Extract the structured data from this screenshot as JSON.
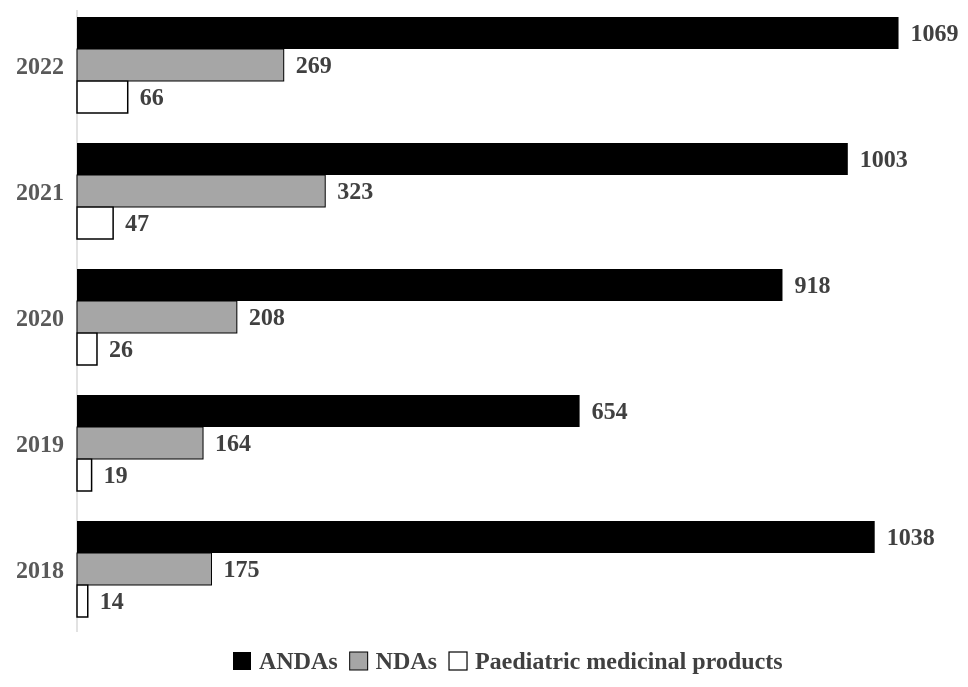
{
  "chart_data": {
    "type": "bar",
    "orientation": "horizontal",
    "categories": [
      "2022",
      "2021",
      "2020",
      "2019",
      "2018"
    ],
    "series": [
      {
        "name": "ANDAs",
        "values": [
          1069,
          1003,
          918,
          654,
          1038
        ],
        "color": "#000000"
      },
      {
        "name": "NDAs",
        "values": [
          269,
          323,
          208,
          164,
          175
        ],
        "color": "#a6a6a6"
      },
      {
        "name": "Paediatric medicinal products",
        "values": [
          66,
          47,
          26,
          19,
          14
        ],
        "color": "#ffffff"
      }
    ],
    "title": "",
    "xlabel": "",
    "ylabel": "",
    "xlim": [
      0,
      1069
    ],
    "grid": false,
    "legend_position": "bottom",
    "data_labels": true
  }
}
